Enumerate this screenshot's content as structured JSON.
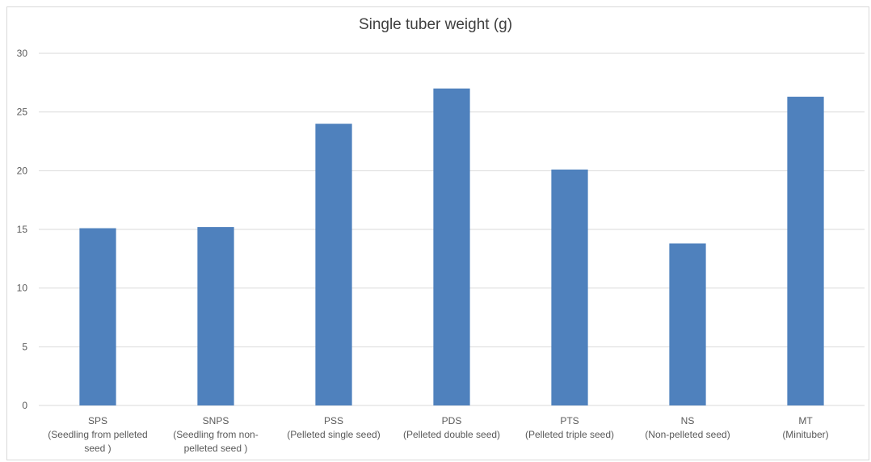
{
  "chart_data": {
    "type": "bar",
    "title": "Single tuber weight (g)",
    "xlabel": "",
    "ylabel": "",
    "ylim": [
      0,
      30
    ],
    "yticks": [
      0,
      5,
      10,
      15,
      20,
      25,
      30
    ],
    "grid": true,
    "legend": "none",
    "bar_color": "#4f81bd",
    "categories": [
      [
        "SPS",
        "(Seedling from pelleted",
        "seed )"
      ],
      [
        "SNPS",
        "(Seedling from non-",
        "pelleted seed )"
      ],
      [
        "PSS",
        "(Pelleted single seed)"
      ],
      [
        "PDS",
        "(Pelleted double seed)"
      ],
      [
        "PTS",
        "(Pelleted triple seed)"
      ],
      [
        "NS",
        "(Non-pelleted seed)"
      ],
      [
        "MT",
        "(Minituber)"
      ]
    ],
    "values": [
      15.1,
      15.2,
      24.0,
      27.0,
      20.1,
      13.8,
      26.3
    ]
  }
}
